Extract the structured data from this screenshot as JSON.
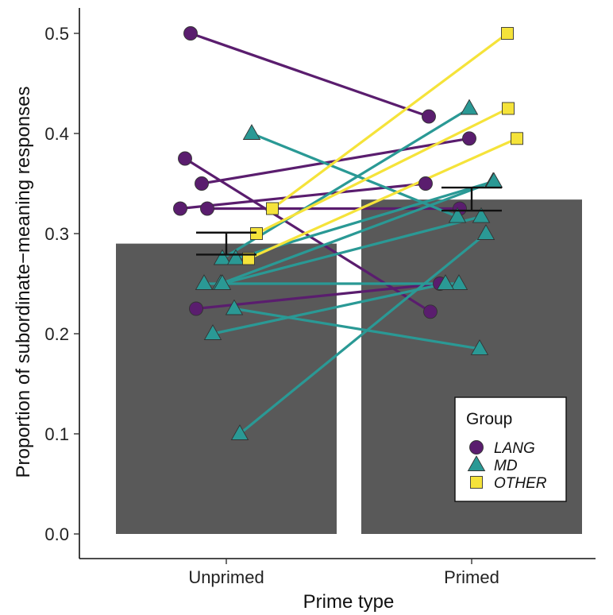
{
  "chart_data": {
    "type": "bar",
    "categories": [
      "Unprimed",
      "Primed"
    ],
    "values": [
      0.29,
      0.334
    ],
    "error_bars": [
      {
        "lower": 0.279,
        "upper": 0.301
      },
      {
        "lower": 0.323,
        "upper": 0.346
      }
    ],
    "xlabel": "Prime type",
    "ylabel": "Proportion of subordinate−meaning responses",
    "ylim": [
      0,
      0.52
    ],
    "yticks": [
      "0.0",
      "0.1",
      "0.2",
      "0.3",
      "0.4",
      "0.5"
    ],
    "grid": false,
    "bar_color": "#595959",
    "legend": {
      "title": "Group",
      "placement": "bottom-right",
      "entries": [
        {
          "label": "LANG",
          "color": "#5a1d6e",
          "shape": "circle"
        },
        {
          "label": "MD",
          "color": "#2a9995",
          "shape": "triangle"
        },
        {
          "label": "OTHER",
          "color": "#f5e33a",
          "shape": "square"
        }
      ]
    },
    "subjects": [
      {
        "group": "LANG",
        "unprimed": 0.5,
        "primed": 0.417
      },
      {
        "group": "LANG",
        "unprimed": 0.375,
        "primed": 0.222
      },
      {
        "group": "LANG",
        "unprimed": 0.35,
        "primed": 0.395
      },
      {
        "group": "LANG",
        "unprimed": 0.325,
        "primed": 0.35
      },
      {
        "group": "LANG",
        "unprimed": 0.325,
        "primed": 0.325
      },
      {
        "group": "LANG",
        "unprimed": 0.225,
        "primed": 0.25
      },
      {
        "group": "MD",
        "unprimed": 0.4,
        "primed": 0.317
      },
      {
        "group": "MD",
        "unprimed": 0.275,
        "primed": 0.425
      },
      {
        "group": "MD",
        "unprimed": 0.275,
        "primed": 0.352
      },
      {
        "group": "MD",
        "unprimed": 0.25,
        "primed": 0.352
      },
      {
        "group": "MD",
        "unprimed": 0.25,
        "primed": 0.317
      },
      {
        "group": "MD",
        "unprimed": 0.25,
        "primed": 0.25
      },
      {
        "group": "MD",
        "unprimed": 0.225,
        "primed": 0.185
      },
      {
        "group": "MD",
        "unprimed": 0.2,
        "primed": 0.25
      },
      {
        "group": "MD",
        "unprimed": 0.1,
        "primed": 0.3
      },
      {
        "group": "OTHER",
        "unprimed": 0.325,
        "primed": 0.5
      },
      {
        "group": "OTHER",
        "unprimed": 0.3,
        "primed": 0.425
      },
      {
        "group": "OTHER",
        "unprimed": 0.275,
        "primed": 0.395
      }
    ]
  }
}
